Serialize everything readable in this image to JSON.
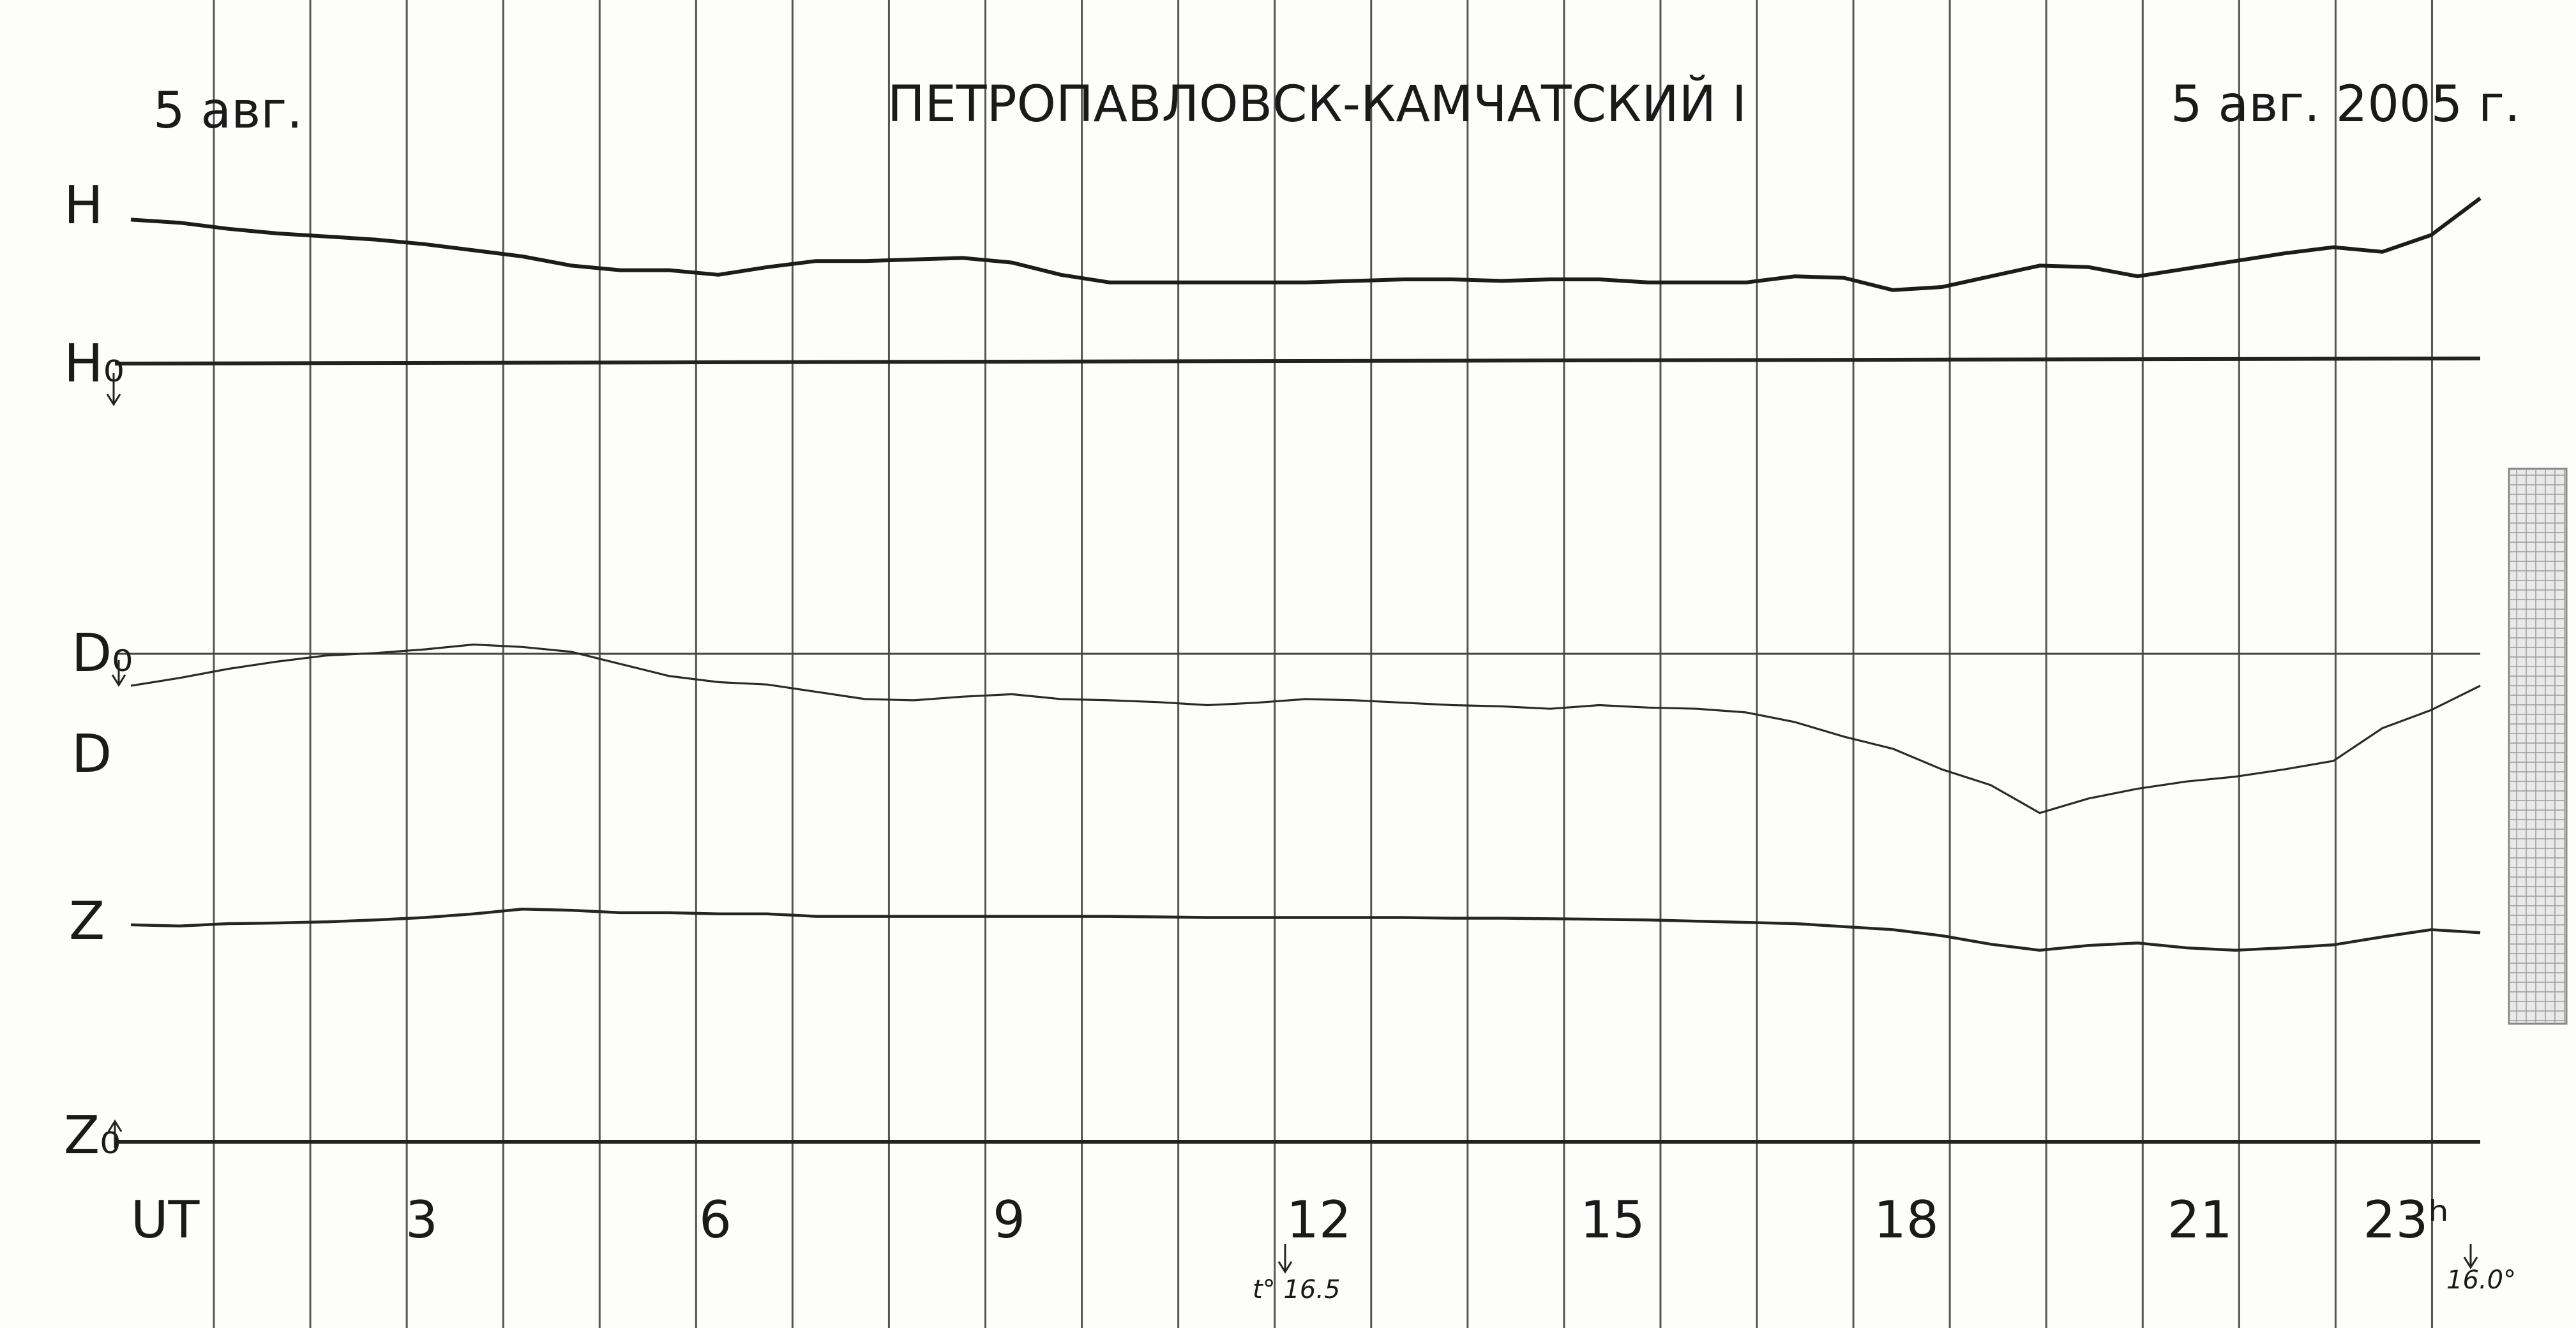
{
  "header": {
    "date_left": "5 авг.",
    "station": "ПЕТРОПАВЛОВСК-КАМЧАТСКИЙ I",
    "date_right": "5 авг. 2005 г."
  },
  "labels": {
    "H": "H",
    "H0": "H₀",
    "D0": "D₀",
    "D": "D",
    "Z": "Z",
    "Z0": "Z₀"
  },
  "axis": {
    "ut_label": "UT",
    "ticks": [
      "3",
      "6",
      "9",
      "12",
      "15",
      "18",
      "21",
      "23ʰ"
    ]
  },
  "notes": {
    "temp_mid": "t° 16.5",
    "temp_end": "16.0°"
  },
  "chart_data": {
    "type": "line",
    "title": "ПЕТРОПАВЛОВСК-КАМЧАТСКИЙ I",
    "xlabel": "UT",
    "x_unit": "hours UT",
    "xlim": [
      0,
      24
    ],
    "x_ticks": [
      3,
      6,
      9,
      12,
      15,
      18,
      21,
      23
    ],
    "y_unit": "relative trace offset above the panel baseline (unitless, read off the chart)",
    "grid": true,
    "baselines": [
      "H0",
      "D0",
      "Z0"
    ],
    "series": [
      {
        "name": "H",
        "x": [
          0,
          0.5,
          1,
          1.5,
          2,
          2.5,
          3,
          3.5,
          4,
          4.5,
          5,
          5.5,
          6,
          6.5,
          7,
          7.5,
          8,
          8.5,
          9,
          9.5,
          10,
          10.5,
          11,
          11.5,
          12,
          12.5,
          13,
          13.5,
          14,
          14.5,
          15,
          15.5,
          16,
          16.5,
          17,
          17.5,
          18,
          18.5,
          19,
          19.5,
          20,
          20.5,
          21,
          21.5,
          22,
          22.5,
          23,
          23.5,
          24
        ],
        "y": [
          94,
          92,
          88,
          85,
          83,
          81,
          78,
          74,
          70,
          64,
          61,
          61,
          58,
          63,
          67,
          67,
          68,
          69,
          66,
          58,
          53,
          53,
          53,
          53,
          53,
          54,
          55,
          55,
          54,
          55,
          55,
          53,
          53,
          53,
          57,
          56,
          48,
          50,
          57,
          64,
          63,
          57,
          62,
          67,
          72,
          76,
          73,
          84,
          108
        ]
      },
      {
        "name": "D",
        "x": [
          0,
          0.5,
          1,
          1.5,
          2,
          2.5,
          3,
          3.5,
          4,
          4.5,
          5,
          5.5,
          6,
          6.5,
          7,
          7.5,
          8,
          8.5,
          9,
          9.5,
          10,
          10.5,
          11,
          11.5,
          12,
          12.5,
          13,
          13.5,
          14,
          14.5,
          15,
          15.5,
          16,
          16.5,
          17,
          17.5,
          18,
          18.5,
          19,
          19.5,
          20,
          20.5,
          21,
          21.5,
          22,
          22.5,
          23,
          23.5,
          24
        ],
        "y": [
          -58,
          -45,
          -30,
          -18,
          -8,
          -4,
          2,
          10,
          6,
          -2,
          -22,
          -42,
          -52,
          -56,
          -68,
          -80,
          -82,
          -76,
          -72,
          -80,
          -82,
          -85,
          -90,
          -86,
          -80,
          -82,
          -86,
          -90,
          -92,
          -96,
          -90,
          -94,
          -96,
          -102,
          -118,
          -142,
          -162,
          -196,
          -222,
          -268,
          -244,
          -228,
          -216,
          -208,
          -196,
          -182,
          -128,
          -98,
          -58
        ]
      },
      {
        "name": "Z",
        "x": [
          0,
          0.5,
          1,
          1.5,
          2,
          2.5,
          3,
          3.5,
          4,
          4.5,
          5,
          5.5,
          6,
          6.5,
          7,
          7.5,
          8,
          8.5,
          9,
          9.5,
          10,
          10.5,
          11,
          11.5,
          12,
          12.5,
          13,
          13.5,
          14,
          14.5,
          15,
          15.5,
          16,
          16.5,
          17,
          17.5,
          18,
          18.5,
          19,
          19.5,
          20,
          20.5,
          21,
          21.5,
          22,
          22.5,
          23,
          23.5,
          24
        ],
        "y": [
          358,
          356,
          360,
          361,
          363,
          366,
          370,
          376,
          384,
          382,
          378,
          378,
          376,
          376,
          372,
          372,
          372,
          372,
          372,
          372,
          372,
          371,
          370,
          370,
          370,
          370,
          370,
          369,
          369,
          368,
          367,
          366,
          364,
          362,
          360,
          355,
          350,
          340,
          326,
          316,
          324,
          328,
          320,
          316,
          320,
          325,
          338,
          350,
          345
        ]
      }
    ]
  }
}
